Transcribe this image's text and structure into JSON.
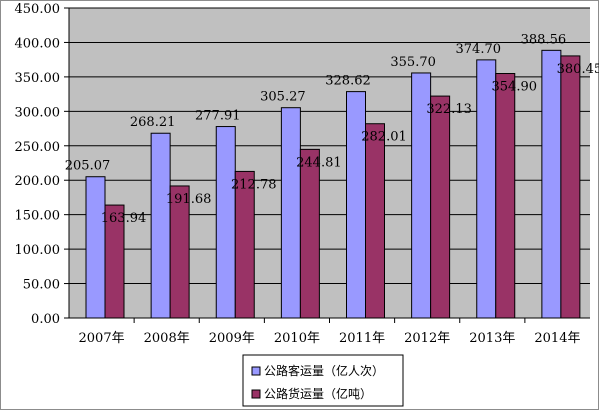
{
  "chart_data": {
    "type": "bar",
    "title": "",
    "xlabel": "",
    "ylabel": "",
    "categories": [
      "2007年",
      "2008年",
      "2009年",
      "2010年",
      "2011年",
      "2012年",
      "2013年",
      "2014年"
    ],
    "series": [
      {
        "name": "公路客运量（亿人次）",
        "color": "#9999ff",
        "values": [
          205.07,
          268.21,
          277.91,
          305.27,
          328.62,
          355.7,
          374.7,
          388.56
        ],
        "labels": [
          "205.07",
          "268.21",
          "277.91",
          "305.27",
          "328.62",
          "355.70",
          "374.70",
          "388.56"
        ]
      },
      {
        "name": "公路货运量（亿吨）",
        "color": "#993366",
        "values": [
          163.94,
          191.68,
          212.78,
          244.81,
          282.01,
          322.13,
          354.9,
          380.45
        ],
        "labels": [
          "163.94",
          "191.68",
          "212.78",
          "244.81",
          "282.01",
          "322.13",
          "354.90",
          "380.45"
        ]
      }
    ],
    "ylim": [
      0,
      450
    ],
    "yticks": [
      0,
      50,
      100,
      150,
      200,
      250,
      300,
      350,
      400,
      450
    ],
    "ytick_labels": [
      "0.00",
      "50.00",
      "100.00",
      "150.00",
      "200.00",
      "250.00",
      "300.00",
      "350.00",
      "400.00",
      "450.00"
    ],
    "grid": true,
    "plot_background": "#c0c0c0",
    "legend_position": "bottom-center"
  }
}
